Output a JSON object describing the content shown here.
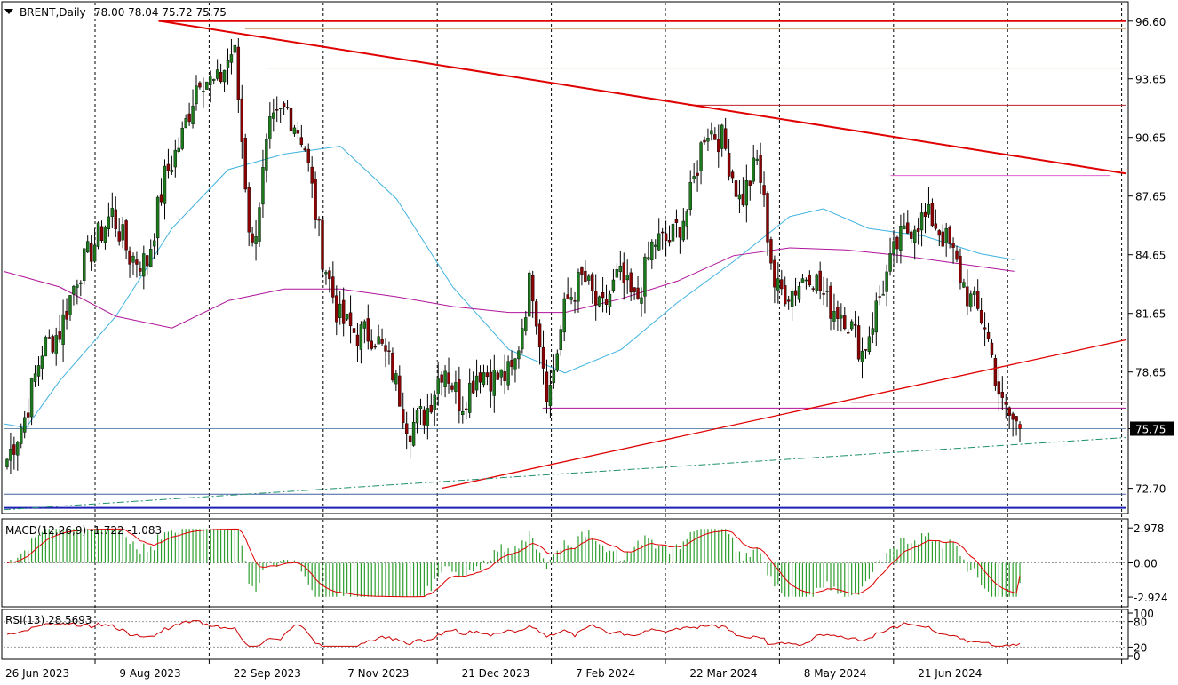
{
  "header": {
    "symbol_timeframe": "BRENT,Daily",
    "ohlc": "78.00 78.04 75.72 75.75"
  },
  "chart_data": {
    "type": "candlestick",
    "symbol": "BRENT",
    "timeframe": "Daily",
    "open": 78.0,
    "high": 78.04,
    "low": 75.72,
    "close": 75.75,
    "price_axis": {
      "ticks": [
        "96.60",
        "93.65",
        "90.65",
        "87.65",
        "84.65",
        "81.65",
        "78.65",
        "75.75",
        "72.70"
      ],
      "tick_values": [
        96.6,
        93.65,
        90.65,
        87.65,
        84.65,
        81.65,
        78.65,
        75.75,
        72.7
      ],
      "ylim": [
        71.5,
        97.5
      ],
      "current_price_label": "75.75"
    },
    "date_axis": {
      "labels": [
        "26 Jun 2023",
        "9 Aug 2023",
        "22 Sep 2023",
        "7 Nov 2023",
        "21 Dec 2023",
        "7 Feb 2024",
        "22 Mar 2024",
        "8 May 2024",
        "21 Jun 2024"
      ],
      "grid": "dotted"
    },
    "candles": [
      {
        "date": "2023-06-26",
        "c": 74.2
      },
      {
        "date": "2023-07-03",
        "c": 76.3
      },
      {
        "date": "2023-07-10",
        "c": 79.8
      },
      {
        "date": "2023-07-17",
        "c": 80.7
      },
      {
        "date": "2023-07-24",
        "c": 83.6
      },
      {
        "date": "2023-07-31",
        "c": 85.2
      },
      {
        "date": "2023-08-07",
        "c": 86.8
      },
      {
        "date": "2023-08-14",
        "c": 84.6
      },
      {
        "date": "2023-08-21",
        "c": 84.2
      },
      {
        "date": "2023-08-28",
        "c": 88.5
      },
      {
        "date": "2023-09-04",
        "c": 90.6
      },
      {
        "date": "2023-09-11",
        "c": 93.9
      },
      {
        "date": "2023-09-18",
        "c": 93.3
      },
      {
        "date": "2023-09-25",
        "c": 95.3
      },
      {
        "date": "2023-10-02",
        "c": 84.6
      },
      {
        "date": "2023-10-09",
        "c": 90.9
      },
      {
        "date": "2023-10-16",
        "c": 92.2
      },
      {
        "date": "2023-10-23",
        "c": 90.5
      },
      {
        "date": "2023-10-30",
        "c": 84.9
      },
      {
        "date": "2023-11-06",
        "c": 81.4
      },
      {
        "date": "2023-11-13",
        "c": 80.6
      },
      {
        "date": "2023-11-20",
        "c": 80.6
      },
      {
        "date": "2023-11-27",
        "c": 78.9
      },
      {
        "date": "2023-12-04",
        "c": 75.8
      },
      {
        "date": "2023-12-11",
        "c": 76.6
      },
      {
        "date": "2023-12-18",
        "c": 79.1
      },
      {
        "date": "2023-12-25",
        "c": 77.0
      },
      {
        "date": "2024-01-01",
        "c": 78.8
      },
      {
        "date": "2024-01-08",
        "c": 78.3
      },
      {
        "date": "2024-01-15",
        "c": 78.6
      },
      {
        "date": "2024-01-22",
        "c": 83.6
      },
      {
        "date": "2024-01-29",
        "c": 77.3
      },
      {
        "date": "2024-02-05",
        "c": 82.2
      },
      {
        "date": "2024-02-12",
        "c": 83.5
      },
      {
        "date": "2024-02-19",
        "c": 81.6
      },
      {
        "date": "2024-02-26",
        "c": 83.6
      },
      {
        "date": "2024-03-04",
        "c": 82.1
      },
      {
        "date": "2024-03-11",
        "c": 85.3
      },
      {
        "date": "2024-03-18",
        "c": 85.4
      },
      {
        "date": "2024-03-25",
        "c": 87.0
      },
      {
        "date": "2024-04-01",
        "c": 91.2
      },
      {
        "date": "2024-04-08",
        "c": 90.5
      },
      {
        "date": "2024-04-15",
        "c": 87.3
      },
      {
        "date": "2024-04-22",
        "c": 89.5
      },
      {
        "date": "2024-04-29",
        "c": 82.8
      },
      {
        "date": "2024-05-06",
        "c": 82.8
      },
      {
        "date": "2024-05-13",
        "c": 83.9
      },
      {
        "date": "2024-05-20",
        "c": 82.1
      },
      {
        "date": "2024-05-27",
        "c": 81.6
      },
      {
        "date": "2024-06-03",
        "c": 79.6
      },
      {
        "date": "2024-06-10",
        "c": 82.6
      },
      {
        "date": "2024-06-17",
        "c": 85.2
      },
      {
        "date": "2024-06-24",
        "c": 86.4
      },
      {
        "date": "2024-07-01",
        "c": 86.5
      },
      {
        "date": "2024-07-08",
        "c": 85.0
      },
      {
        "date": "2024-07-15",
        "c": 82.6
      },
      {
        "date": "2024-07-22",
        "c": 81.1
      },
      {
        "date": "2024-07-29",
        "c": 76.8
      },
      {
        "date": "2024-08-05",
        "c": 75.75
      }
    ],
    "series": [
      {
        "name": "fast MA",
        "color": "#3fb3e0",
        "points": [
          [
            0,
            76
          ],
          [
            0.02,
            75.8
          ],
          [
            0.05,
            78.2
          ],
          [
            0.1,
            81.5
          ],
          [
            0.15,
            86.0
          ],
          [
            0.2,
            89.0
          ],
          [
            0.25,
            89.8
          ],
          [
            0.3,
            90.2
          ],
          [
            0.35,
            87.5
          ],
          [
            0.4,
            83.0
          ],
          [
            0.45,
            79.8
          ],
          [
            0.5,
            78.6
          ],
          [
            0.55,
            79.8
          ],
          [
            0.6,
            82.2
          ],
          [
            0.65,
            84.3
          ],
          [
            0.7,
            86.6
          ],
          [
            0.73,
            87.0
          ],
          [
            0.77,
            86.0
          ],
          [
            0.82,
            85.6
          ],
          [
            0.87,
            84.7
          ],
          [
            0.9,
            84.4
          ]
        ]
      },
      {
        "name": "slow MA",
        "color": "#b0139a",
        "points": [
          [
            0,
            83.8
          ],
          [
            0.05,
            83.0
          ],
          [
            0.1,
            81.5
          ],
          [
            0.15,
            80.9
          ],
          [
            0.2,
            82.3
          ],
          [
            0.25,
            82.9
          ],
          [
            0.3,
            82.9
          ],
          [
            0.35,
            82.5
          ],
          [
            0.4,
            82.0
          ],
          [
            0.45,
            81.7
          ],
          [
            0.5,
            81.7
          ],
          [
            0.55,
            82.4
          ],
          [
            0.6,
            83.3
          ],
          [
            0.65,
            84.6
          ],
          [
            0.7,
            85.0
          ],
          [
            0.75,
            84.9
          ],
          [
            0.8,
            84.6
          ],
          [
            0.85,
            84.2
          ],
          [
            0.9,
            83.8
          ]
        ]
      }
    ],
    "lines": [
      {
        "kind": "trend-down",
        "color": "#e00000",
        "from": [
          0.14,
          96.6
        ],
        "to": [
          1.0,
          88.8
        ]
      },
      {
        "kind": "trend-up",
        "color": "#e00000",
        "from": [
          0.39,
          72.7
        ],
        "to": [
          1.0,
          80.3
        ]
      },
      {
        "kind": "horizontal",
        "color": "#e00000",
        "value": 96.6
      },
      {
        "kind": "horizontal",
        "color": "#c8a27a",
        "value": 96.2
      },
      {
        "kind": "horizontal",
        "color": "#c8a27a",
        "value": 94.2
      },
      {
        "kind": "horizontal",
        "color": "#c0202a",
        "value": 92.3
      },
      {
        "kind": "horizontal",
        "color": "#e060d0",
        "value": 88.7
      },
      {
        "kind": "horizontal",
        "color": "#b0139a",
        "value": 76.8
      },
      {
        "kind": "horizontal",
        "color": "#8a0030",
        "value": 77.1
      },
      {
        "kind": "horizontal",
        "color": "#1e1eb4",
        "value": 71.7
      },
      {
        "kind": "horizontal",
        "color": "#4060a0",
        "value": 72.4
      },
      {
        "kind": "channel-dashdot",
        "color": "#209070",
        "from": [
          0.0,
          71.6
        ],
        "to": [
          1.0,
          75.3
        ]
      }
    ],
    "indicators": {
      "macd": {
        "label": "MACD(12,26,9) -1.722 -1.083",
        "ticks": [
          "2.978",
          "0.00",
          "-2.924"
        ],
        "tick_values": [
          2.978,
          0.0,
          -2.924
        ],
        "ylim": [
          -3.6,
          3.6
        ],
        "histogram_color": "#2e9e2e",
        "signal_color": "#e00000"
      },
      "rsi": {
        "label": "RSI(13) 28.5693",
        "ticks": [
          "100",
          "80",
          "20",
          "0"
        ],
        "tick_values": [
          100,
          80,
          20,
          0
        ],
        "levels": [
          80,
          20
        ],
        "line_color": "#cc0000"
      }
    },
    "grid": "vertical dotted lines at date labels",
    "legend_placement": "top-left"
  }
}
